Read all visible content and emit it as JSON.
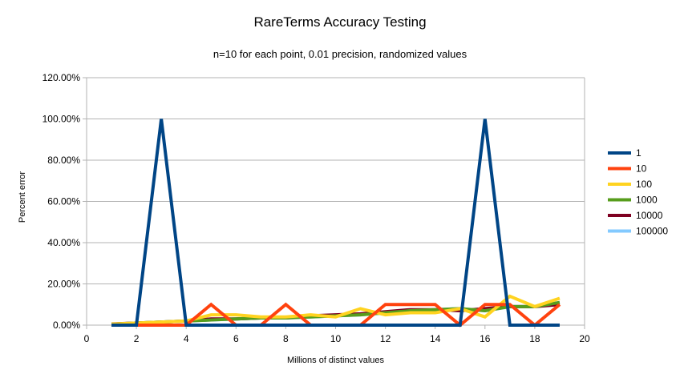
{
  "chart_data": {
    "type": "line",
    "title": "RareTerms Accuracy Testing",
    "subtitle": "n=10 for each point, 0.01 precision, randomized values",
    "xlabel": "Millions of distinct values",
    "ylabel": "Percent error",
    "xlim": [
      0,
      20
    ],
    "ylim": [
      0,
      120
    ],
    "xticks": [
      "0",
      "2",
      "4",
      "6",
      "8",
      "10",
      "12",
      "14",
      "16",
      "18",
      "20"
    ],
    "yticks": [
      "0.00%",
      "20.00%",
      "40.00%",
      "60.00%",
      "80.00%",
      "100.00%",
      "120.00%"
    ],
    "grid": "horizontal",
    "legend": "right",
    "x": [
      1,
      2,
      3,
      4,
      5,
      6,
      7,
      8,
      9,
      10,
      11,
      12,
      13,
      14,
      15,
      16,
      17,
      18,
      19
    ],
    "series": [
      {
        "name": "100000",
        "color": "#83caff",
        "values": [
          0.5,
          1,
          1.5,
          2,
          2.5,
          3,
          3.5,
          3.5,
          4,
          4.5,
          5,
          6,
          7,
          7.5,
          8,
          7,
          9,
          9,
          11
        ]
      },
      {
        "name": "10000",
        "color": "#7e0021",
        "values": [
          0.6,
          1,
          1.5,
          2,
          3,
          3,
          3.5,
          3.5,
          4.5,
          5,
          5.5,
          6.5,
          7.5,
          7.5,
          7,
          8,
          9,
          9,
          10
        ]
      },
      {
        "name": "1000",
        "color": "#579d1c",
        "values": [
          0.5,
          1,
          1.5,
          2,
          2.5,
          3,
          3.5,
          3.5,
          4,
          4.5,
          5,
          6,
          7,
          7.5,
          8,
          7,
          9,
          9,
          11
        ]
      },
      {
        "name": "100",
        "color": "#ffd320",
        "values": [
          0.5,
          1,
          1.5,
          2,
          5,
          5,
          4,
          4,
          5,
          4,
          8,
          5,
          6,
          6,
          8,
          4,
          14,
          9,
          13
        ]
      },
      {
        "name": "10",
        "color": "#ff420e",
        "values": [
          0,
          0,
          0,
          0,
          10,
          0,
          0,
          10,
          0,
          0,
          0,
          10,
          10,
          10,
          0,
          10,
          10,
          0,
          10
        ]
      },
      {
        "name": "1",
        "color": "#004586",
        "values": [
          0,
          0,
          100,
          0,
          0,
          0,
          0,
          0,
          0,
          0,
          0,
          0,
          0,
          0,
          0,
          100,
          0,
          0,
          0
        ]
      }
    ],
    "legend_order": [
      "1",
      "10",
      "100",
      "1000",
      "10000",
      "100000"
    ]
  }
}
